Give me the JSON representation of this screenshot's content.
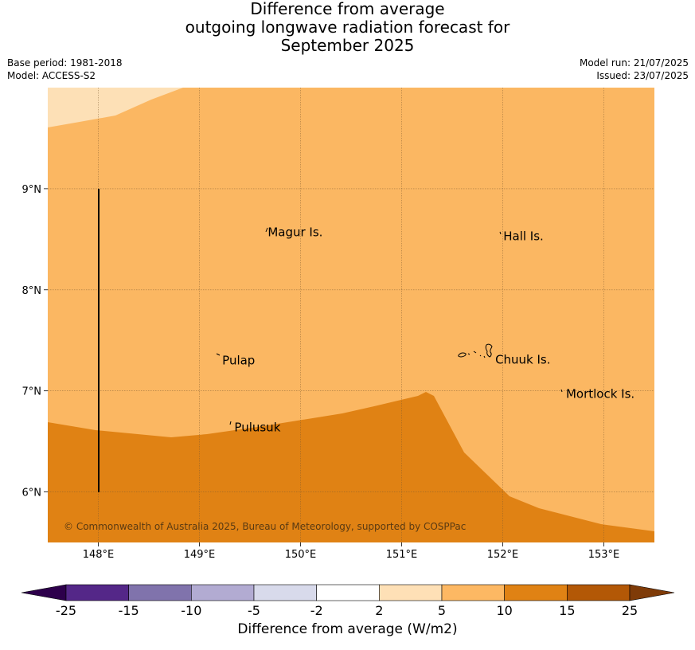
{
  "title": {
    "line1": "Difference from average",
    "line2": "outgoing longwave radiation forecast for",
    "line3": "September 2025"
  },
  "meta": {
    "base_period": "Base period: 1981-2018",
    "model": "Model: ACCESS-S2",
    "model_run": "Model run: 21/07/2025",
    "issued": "Issued: 23/07/2025"
  },
  "map": {
    "lon_range": [
      147.5,
      153.5
    ],
    "lat_range": [
      5.5,
      10.0
    ],
    "lon_ticks": [
      {
        "value": 148,
        "label": "148°E"
      },
      {
        "value": 149,
        "label": "149°E"
      },
      {
        "value": 150,
        "label": "150°E"
      },
      {
        "value": 151,
        "label": "151°E"
      },
      {
        "value": 152,
        "label": "152°E"
      },
      {
        "value": 153,
        "label": "153°E"
      }
    ],
    "lat_ticks": [
      {
        "value": 9,
        "label": "9°N"
      },
      {
        "value": 8,
        "label": "8°N"
      },
      {
        "value": 7,
        "label": "7°N"
      },
      {
        "value": 6,
        "label": "6°N"
      }
    ],
    "places": [
      {
        "name": "Magur Is.",
        "lon": 149.66,
        "lat": 8.57
      },
      {
        "name": "Hall Is.",
        "lon": 151.99,
        "lat": 8.53
      },
      {
        "name": "Pulap",
        "lon": 149.21,
        "lat": 7.3
      },
      {
        "name": "Chuuk Is.",
        "lon": 151.91,
        "lat": 7.31
      },
      {
        "name": "Mortlock Is.",
        "lon": 152.61,
        "lat": 6.97
      },
      {
        "name": "Pulusuk",
        "lon": 149.33,
        "lat": 6.64
      }
    ],
    "copyright": "© Commonwealth of Australia 2025, Bureau of Meteorology, supported by COSPPac",
    "colors": {
      "band_2_5": "#fde0b6",
      "band_5_10": "#fbb762",
      "band_10_15": "#e08214"
    }
  },
  "colorbar": {
    "label": "Difference from average (W/m2)",
    "ticks": [
      "-25",
      "-15",
      "-10",
      "-5",
      "-2",
      "2",
      "5",
      "10",
      "15",
      "25"
    ],
    "colors": [
      "#2d004b",
      "#542788",
      "#8073ac",
      "#b2abd2",
      "#d8daeb",
      "#ffffff",
      "#fee0b6",
      "#fdb863",
      "#e08214",
      "#b35806",
      "#7f3b08"
    ]
  }
}
